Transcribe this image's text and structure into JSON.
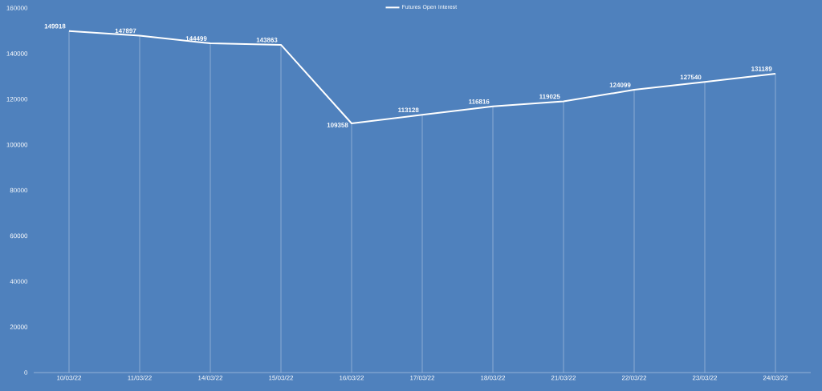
{
  "chart_data": {
    "type": "line",
    "categories": [
      "10/03/22",
      "11/03/22",
      "14/03/22",
      "15/03/22",
      "16/03/22",
      "17/03/22",
      "18/03/22",
      "21/03/22",
      "22/03/22",
      "23/03/22",
      "24/03/22"
    ],
    "series": [
      {
        "name": "Futures Open Interest",
        "color": "#ffffff",
        "values": [
          149918,
          147897,
          144499,
          143863,
          109358,
          113128,
          116816,
          119025,
          124099,
          127540,
          131189
        ]
      }
    ],
    "ylim": [
      0,
      160000
    ],
    "yticks": [
      0,
      20000,
      40000,
      60000,
      80000,
      100000,
      120000,
      140000,
      160000
    ],
    "grid": "x",
    "legend": "top",
    "marker": "none",
    "line_style": "solid",
    "data_labels": true
  }
}
